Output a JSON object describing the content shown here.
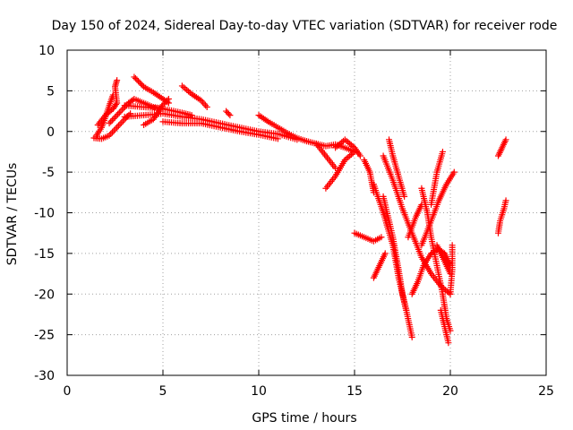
{
  "chart_data": {
    "type": "scatter",
    "title": "Day 150 of 2024, Sidereal Day-to-day VTEC variation (SDTVAR) for receiver rode",
    "xlabel": "GPS time / hours",
    "ylabel": "SDTVAR / TECUs",
    "xlim": [
      0,
      25
    ],
    "ylim": [
      -30,
      10
    ],
    "xticks": [
      "0",
      "5",
      "10",
      "15",
      "20",
      "25"
    ],
    "yticks": [
      "10",
      "5",
      "0",
      "-5",
      "-10",
      "-15",
      "-20",
      "-25",
      "-30"
    ],
    "grid": true,
    "marker": "plus",
    "series": [
      {
        "name": "SDTVAR",
        "color": "#ff0000",
        "traces": [
          [
            [
              1.5,
              -0.6
            ],
            [
              1.8,
              0.5
            ],
            [
              2.0,
              1.8
            ],
            [
              2.2,
              3.2
            ],
            [
              2.4,
              4.5
            ]
          ],
          [
            [
              1.6,
              0.8
            ],
            [
              2.0,
              2.0
            ],
            [
              2.4,
              2.8
            ],
            [
              2.6,
              3.5
            ],
            [
              2.5,
              5.5
            ],
            [
              2.6,
              6.3
            ]
          ],
          [
            [
              1.4,
              -0.8
            ],
            [
              1.8,
              -0.9
            ],
            [
              2.2,
              -0.5
            ],
            [
              2.6,
              0.5
            ],
            [
              3.0,
              1.5
            ],
            [
              3.3,
              2.2
            ]
          ],
          [
            [
              2.2,
              1.0
            ],
            [
              2.8,
              2.5
            ],
            [
              3.2,
              3.5
            ],
            [
              3.5,
              4.0
            ],
            [
              4.0,
              3.5
            ],
            [
              4.5,
              3.0
            ],
            [
              5.0,
              2.8
            ]
          ],
          [
            [
              3.5,
              6.7
            ],
            [
              4.0,
              5.5
            ],
            [
              4.5,
              4.8
            ],
            [
              5.0,
              4.0
            ],
            [
              5.3,
              3.5
            ]
          ],
          [
            [
              4.0,
              0.8
            ],
            [
              4.5,
              1.5
            ],
            [
              4.8,
              2.5
            ],
            [
              5.0,
              3.3
            ],
            [
              5.3,
              4.0
            ]
          ],
          [
            [
              3.0,
              1.8
            ],
            [
              4.0,
              2.0
            ],
            [
              5.0,
              2.2
            ],
            [
              6.0,
              1.8
            ],
            [
              7.0,
              1.5
            ],
            [
              8.0,
              1.0
            ],
            [
              9.0,
              0.5
            ],
            [
              10.0,
              0.0
            ],
            [
              11.0,
              -0.3
            ],
            [
              12.0,
              -1.0
            ]
          ],
          [
            [
              3.0,
              3.2
            ],
            [
              4.0,
              3.0
            ],
            [
              5.0,
              2.8
            ],
            [
              6.0,
              2.3
            ],
            [
              6.5,
              2.0
            ]
          ],
          [
            [
              6.0,
              5.6
            ],
            [
              6.5,
              4.6
            ],
            [
              7.0,
              3.8
            ],
            [
              7.3,
              3.0
            ]
          ],
          [
            [
              5.0,
              1.2
            ],
            [
              6.0,
              1.0
            ],
            [
              7.0,
              1.0
            ],
            [
              8.0,
              0.5
            ],
            [
              9.0,
              0.0
            ],
            [
              10.0,
              -0.4
            ],
            [
              11.0,
              -0.9
            ]
          ],
          [
            [
              8.3,
              2.5
            ],
            [
              8.5,
              2.0
            ]
          ],
          [
            [
              10.0,
              2.0
            ],
            [
              10.5,
              1.2
            ],
            [
              11.0,
              0.5
            ],
            [
              11.5,
              -0.2
            ],
            [
              12.0,
              -0.8
            ],
            [
              12.5,
              -1.2
            ]
          ],
          [
            [
              12.5,
              -1.2
            ],
            [
              13.0,
              -1.5
            ],
            [
              13.5,
              -1.8
            ],
            [
              14.0,
              -1.6
            ],
            [
              14.5,
              -2.0
            ],
            [
              15.0,
              -2.5
            ]
          ],
          [
            [
              13.0,
              -1.5
            ],
            [
              13.5,
              -3.0
            ],
            [
              14.0,
              -4.5
            ]
          ],
          [
            [
              13.5,
              -7.0
            ],
            [
              14.0,
              -5.5
            ],
            [
              14.5,
              -3.5
            ],
            [
              15.0,
              -2.5
            ]
          ],
          [
            [
              14.0,
              -2.0
            ],
            [
              14.5,
              -1.0
            ],
            [
              15.0,
              -2.0
            ],
            [
              15.3,
              -3.0
            ]
          ],
          [
            [
              15.0,
              -12.5
            ],
            [
              15.5,
              -13.0
            ],
            [
              16.0,
              -13.5
            ],
            [
              16.4,
              -13.0
            ]
          ],
          [
            [
              15.5,
              -3.5
            ],
            [
              15.8,
              -5.0
            ],
            [
              16.0,
              -7.5
            ]
          ],
          [
            [
              16.0,
              -18.0
            ],
            [
              16.3,
              -16.5
            ],
            [
              16.6,
              -15.0
            ]
          ],
          [
            [
              16.0,
              -6.5
            ],
            [
              16.5,
              -10.0
            ],
            [
              17.0,
              -14.0
            ],
            [
              17.3,
              -18.0
            ],
            [
              17.7,
              -22.0
            ],
            [
              18.0,
              -25.3
            ]
          ],
          [
            [
              16.5,
              -3.0
            ],
            [
              17.0,
              -6.0
            ],
            [
              17.5,
              -9.5
            ],
            [
              18.0,
              -12.5
            ],
            [
              18.5,
              -15.5
            ],
            [
              19.0,
              -17.5
            ],
            [
              19.5,
              -19.0
            ],
            [
              20.0,
              -20.0
            ]
          ],
          [
            [
              16.5,
              -8.0
            ],
            [
              17.0,
              -13.0
            ],
            [
              17.3,
              -17.0
            ],
            [
              17.5,
              -20.0
            ],
            [
              17.7,
              -22.0
            ]
          ],
          [
            [
              16.8,
              -1.0
            ],
            [
              17.0,
              -3.0
            ],
            [
              17.3,
              -5.5
            ],
            [
              17.6,
              -8.0
            ]
          ],
          [
            [
              17.8,
              -13.0
            ],
            [
              18.2,
              -10.5
            ],
            [
              18.5,
              -9.0
            ]
          ],
          [
            [
              18.5,
              -7.0
            ],
            [
              18.8,
              -10.0
            ],
            [
              19.0,
              -13.0
            ],
            [
              19.3,
              -16.5
            ],
            [
              19.6,
              -20.0
            ],
            [
              19.8,
              -23.0
            ],
            [
              20.0,
              -24.5
            ]
          ],
          [
            [
              18.0,
              -20.0
            ],
            [
              18.3,
              -18.5
            ],
            [
              18.6,
              -16.5
            ],
            [
              19.0,
              -15.0
            ],
            [
              19.4,
              -14.5
            ],
            [
              19.7,
              -15.0
            ],
            [
              20.0,
              -16.5
            ]
          ],
          [
            [
              18.5,
              -14.0
            ],
            [
              19.0,
              -11.0
            ],
            [
              19.4,
              -8.5
            ],
            [
              19.8,
              -6.5
            ],
            [
              20.2,
              -5.0
            ]
          ],
          [
            [
              19.0,
              -9.0
            ],
            [
              19.3,
              -5.0
            ],
            [
              19.6,
              -2.5
            ]
          ],
          [
            [
              19.5,
              -22.0
            ],
            [
              19.7,
              -24.0
            ],
            [
              19.9,
              -26.0
            ]
          ],
          [
            [
              19.3,
              -14.0
            ],
            [
              19.6,
              -15.5
            ],
            [
              20.0,
              -17.5
            ]
          ],
          [
            [
              20.0,
              -20.0
            ],
            [
              20.1,
              -17.0
            ],
            [
              20.1,
              -14.0
            ]
          ],
          [
            [
              22.5,
              -3.0
            ],
            [
              22.7,
              -2.0
            ],
            [
              22.9,
              -1.0
            ]
          ],
          [
            [
              22.5,
              -12.5
            ],
            [
              22.6,
              -11.0
            ],
            [
              22.8,
              -9.5
            ],
            [
              22.9,
              -8.5
            ]
          ]
        ]
      }
    ]
  }
}
